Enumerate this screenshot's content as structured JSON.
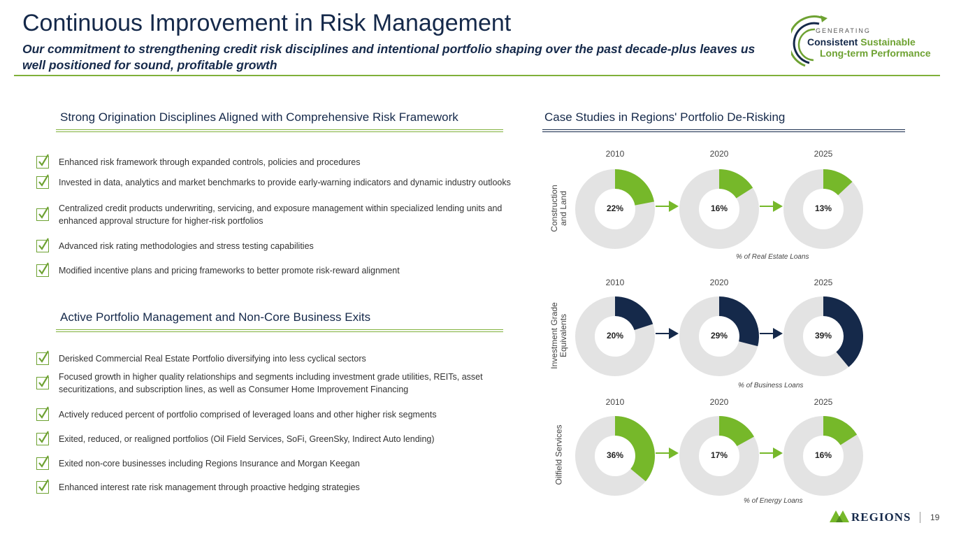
{
  "title": "Continuous Improvement in Risk Management",
  "subtitle": "Our commitment to strengthening credit risk disciplines and intentional portfolio shaping over the past decade-plus leaves us well positioned for sound, profitable growth",
  "logo": {
    "line0": "GENERATING",
    "line1a": "Consistent",
    "line1b": "Sustainable",
    "line2": "Long-term Performance"
  },
  "left": {
    "section1_title": "Strong Origination Disciplines Aligned with Comprehensive Risk Framework",
    "section1_items": [
      "Enhanced risk framework through expanded controls, policies and procedures",
      "Invested in data, analytics and market benchmarks to provide early-warning indicators and dynamic industry outlooks",
      "Centralized credit products underwriting, servicing, and exposure management within specialized lending units and enhanced approval structure for higher-risk portfolios",
      "Advanced risk rating methodologies and stress testing capabilities",
      "Modified incentive plans and pricing frameworks to better promote risk-reward alignment"
    ],
    "section2_title": "Active Portfolio Management and Non-Core Business Exits",
    "section2_items": [
      "Derisked Commercial Real Estate Portfolio diversifying into less cyclical sectors",
      "Focused growth in higher quality relationships and segments including investment grade utilities, REITs, asset securitizations, and subscription lines, as well as Consumer Home Improvement Financing",
      "Actively reduced percent of portfolio comprised of leveraged loans and other higher risk segments",
      "Exited, reduced, or realigned portfolios (Oil Field Services, SoFi, GreenSky, Indirect Auto lending)",
      "Exited non-core businesses including Regions Insurance and Morgan Keegan",
      "Enhanced interest rate risk management through proactive hedging strategies"
    ]
  },
  "right": {
    "title": "Case Studies in Regions' Portfolio De-Risking"
  },
  "chart_data": [
    {
      "type": "pie",
      "title": "Construction and Land",
      "row_label_lines": [
        "Construction",
        "and Land"
      ],
      "categories": [
        "2010",
        "2020",
        "2025"
      ],
      "values": [
        22,
        16,
        13
      ],
      "labels": [
        "22%",
        "16%",
        "13%"
      ],
      "unit": "% of Real Estate Loans",
      "color": "#76b82a"
    },
    {
      "type": "pie",
      "title": "Investment Grade Equivalents",
      "row_label_lines": [
        "Investment Grade",
        "Equivalents"
      ],
      "categories": [
        "2010",
        "2020",
        "2025"
      ],
      "values": [
        20,
        29,
        39
      ],
      "labels": [
        "20%",
        "29%",
        "39%"
      ],
      "unit": "% of Business Loans",
      "color": "#15294a"
    },
    {
      "type": "pie",
      "title": "Oilfield Services",
      "row_label_lines": [
        "Oilfield Services"
      ],
      "categories": [
        "2010",
        "2020",
        "2025"
      ],
      "values": [
        36,
        17,
        16
      ],
      "labels": [
        "36%",
        "17%",
        "16%"
      ],
      "unit": "% of Energy Loans",
      "color": "#76b82a"
    }
  ],
  "footer": {
    "brand": "REGIONS",
    "page_number": "19"
  }
}
